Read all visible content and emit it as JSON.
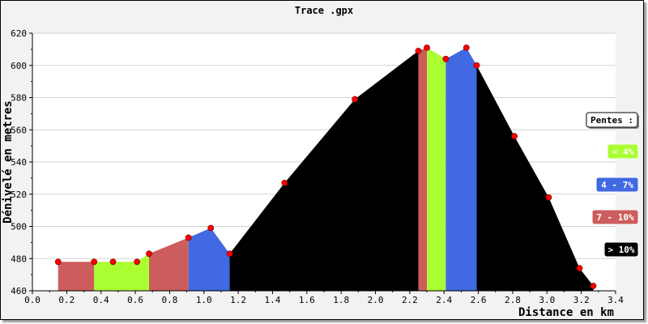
{
  "chart_data": {
    "type": "area",
    "title": "Trace .gpx",
    "xlabel": "Distance en km",
    "ylabel": "Dénivelé en metres",
    "xlim": [
      0.0,
      3.4
    ],
    "ylim": [
      460,
      620
    ],
    "x_ticks": [
      "0.0",
      "0.2",
      "0.4",
      "0.6",
      "0.8",
      "1.0",
      "1.2",
      "1.4",
      "1.6",
      "1.8",
      "2.0",
      "2.2",
      "2.4",
      "2.6",
      "2.8",
      "3.0",
      "3.2",
      "3.4"
    ],
    "y_ticks": [
      "460",
      "480",
      "500",
      "520",
      "540",
      "560",
      "580",
      "600",
      "620"
    ],
    "grid": true,
    "points": [
      {
        "x": 0.15,
        "y": 478
      },
      {
        "x": 0.36,
        "y": 478
      },
      {
        "x": 0.47,
        "y": 478
      },
      {
        "x": 0.61,
        "y": 478
      },
      {
        "x": 0.68,
        "y": 483
      },
      {
        "x": 0.91,
        "y": 493
      },
      {
        "x": 1.04,
        "y": 499
      },
      {
        "x": 1.15,
        "y": 483
      },
      {
        "x": 1.47,
        "y": 527
      },
      {
        "x": 1.88,
        "y": 579
      },
      {
        "x": 2.25,
        "y": 609
      },
      {
        "x": 2.3,
        "y": 611
      },
      {
        "x": 2.41,
        "y": 604
      },
      {
        "x": 2.53,
        "y": 611
      },
      {
        "x": 2.59,
        "y": 600
      },
      {
        "x": 2.81,
        "y": 556
      },
      {
        "x": 3.01,
        "y": 518
      },
      {
        "x": 3.19,
        "y": 474
      },
      {
        "x": 3.27,
        "y": 463
      }
    ],
    "segments": [
      {
        "from": 0.15,
        "to": 0.36,
        "class": "red"
      },
      {
        "from": 0.36,
        "to": 0.68,
        "class": "green"
      },
      {
        "from": 0.68,
        "to": 0.91,
        "class": "red"
      },
      {
        "from": 0.91,
        "to": 1.15,
        "class": "blue"
      },
      {
        "from": 1.15,
        "to": 2.25,
        "class": "black"
      },
      {
        "from": 2.25,
        "to": 2.3,
        "class": "red"
      },
      {
        "from": 2.3,
        "to": 2.41,
        "class": "green"
      },
      {
        "from": 2.41,
        "to": 2.59,
        "class": "blue"
      },
      {
        "from": 2.59,
        "to": 3.27,
        "class": "black"
      }
    ],
    "legend": {
      "title": "Pentes :",
      "entries": [
        {
          "label": "< 4%",
          "class": "green"
        },
        {
          "label": "4 - 7%",
          "class": "blue"
        },
        {
          "label": "7 - 10%",
          "class": "red"
        },
        {
          "label": "> 10%",
          "class": "black"
        }
      ]
    },
    "colors": {
      "green": "#aaff33",
      "blue": "#4169e1",
      "red": "#cd5c5c",
      "black": "#000000",
      "marker": "#ff0000"
    }
  }
}
